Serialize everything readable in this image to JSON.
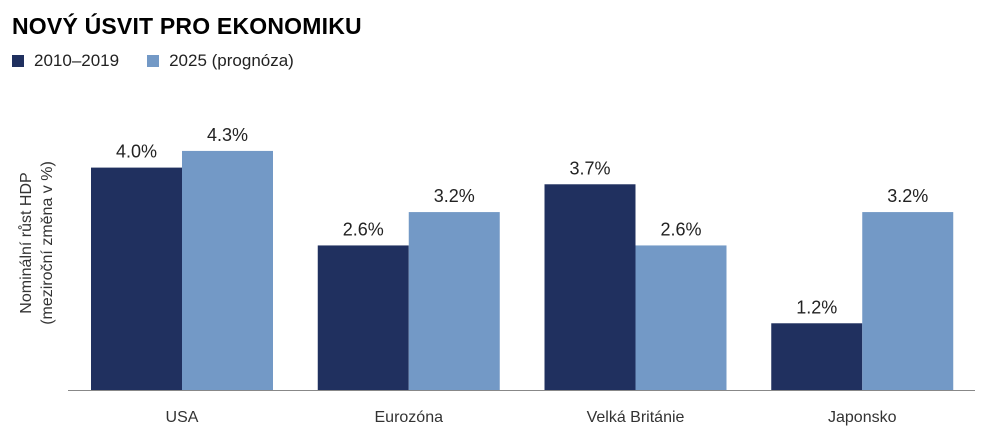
{
  "chart_data": {
    "type": "bar",
    "title": "NOVÝ ÚSVIT PRO EKONOMIKU",
    "ylabel_line1": "Nominální růst HDP",
    "ylabel_line2": "(meziroční změna v %)",
    "xlabel": "",
    "categories": [
      "USA",
      "Eurozóna",
      "Velká Británie",
      "Japonsko"
    ],
    "series": [
      {
        "name": "2010–2019",
        "color": "#20305f",
        "values": [
          4.0,
          2.6,
          3.7,
          1.2
        ],
        "labels": [
          "4.0%",
          "2.6%",
          "3.7%",
          "1.2%"
        ]
      },
      {
        "name": "2025 (prognóza)",
        "color": "#7399c6",
        "values": [
          4.3,
          3.2,
          2.6,
          3.2
        ],
        "labels": [
          "4.3%",
          "3.2%",
          "2.6%",
          "3.2%"
        ]
      }
    ],
    "ylim": [
      0,
      5
    ],
    "grid": false,
    "legend_position": "top-left"
  }
}
